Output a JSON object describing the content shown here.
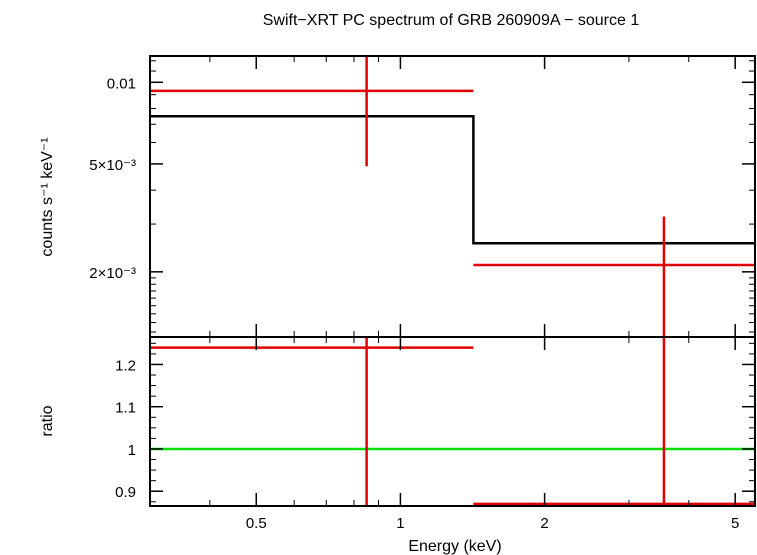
{
  "chart_data": [
    {
      "panel": "spectrum",
      "type": "scatter",
      "title": "Swift−XRT PC spectrum of GRB 260909A − source 1",
      "ylabel": "counts s⁻¹ keV⁻¹",
      "xscale": "log",
      "yscale": "log",
      "xlim": [
        0.3,
        5.5
      ],
      "ylim": [
        0.00115,
        0.0125
      ],
      "yticks": [
        {
          "value": 0.01,
          "label": "0.01"
        },
        {
          "value": 0.005,
          "label": "5×10⁻³"
        },
        {
          "value": 0.002,
          "label": "2×10⁻³"
        }
      ],
      "series": [
        {
          "kind": "data-with-errors",
          "color": "#e00000",
          "points": [
            {
              "x": 0.85,
              "xlo": 0.3,
              "xhi": 1.42,
              "y": 0.0093,
              "ylo": 0.0049,
              "yhi": 0.0125
            },
            {
              "x": 3.55,
              "xlo": 1.42,
              "xhi": 5.5,
              "y": 0.00212,
              "ylo": 0.00115,
              "yhi": 0.0032
            }
          ]
        },
        {
          "kind": "model-step",
          "color": "#000000",
          "steps": [
            {
              "x0": 0.3,
              "x1": 1.42,
              "y": 0.0075
            },
            {
              "x0": 1.42,
              "x1": 5.5,
              "y": 0.00255
            }
          ]
        }
      ]
    },
    {
      "panel": "ratio",
      "type": "scatter",
      "xlabel": "Energy (keV)",
      "ylabel": "ratio",
      "xscale": "log",
      "xlim": [
        0.3,
        5.5
      ],
      "ylim": [
        0.865,
        1.265
      ],
      "xticks": [
        {
          "value": 0.5,
          "label": "0.5"
        },
        {
          "value": 1,
          "label": "1"
        },
        {
          "value": 2,
          "label": "2"
        },
        {
          "value": 5,
          "label": "5"
        }
      ],
      "yticks": [
        {
          "value": 1.2,
          "label": "1.2"
        },
        {
          "value": 1.1,
          "label": "1.1"
        },
        {
          "value": 1,
          "label": "1"
        },
        {
          "value": 0.9,
          "label": "0.9"
        }
      ],
      "reference_line": {
        "y": 1,
        "color": "#00e000"
      },
      "series": [
        {
          "kind": "data-with-errors",
          "color": "#e00000",
          "points": [
            {
              "x": 0.85,
              "xlo": 0.3,
              "xhi": 1.42,
              "y": 1.24,
              "ylo": 0.865,
              "yhi": 1.265
            },
            {
              "x": 3.55,
              "xlo": 1.42,
              "xhi": 5.5,
              "y": 0.87,
              "ylo": 0.865,
              "yhi": 1.265
            }
          ]
        }
      ]
    }
  ]
}
